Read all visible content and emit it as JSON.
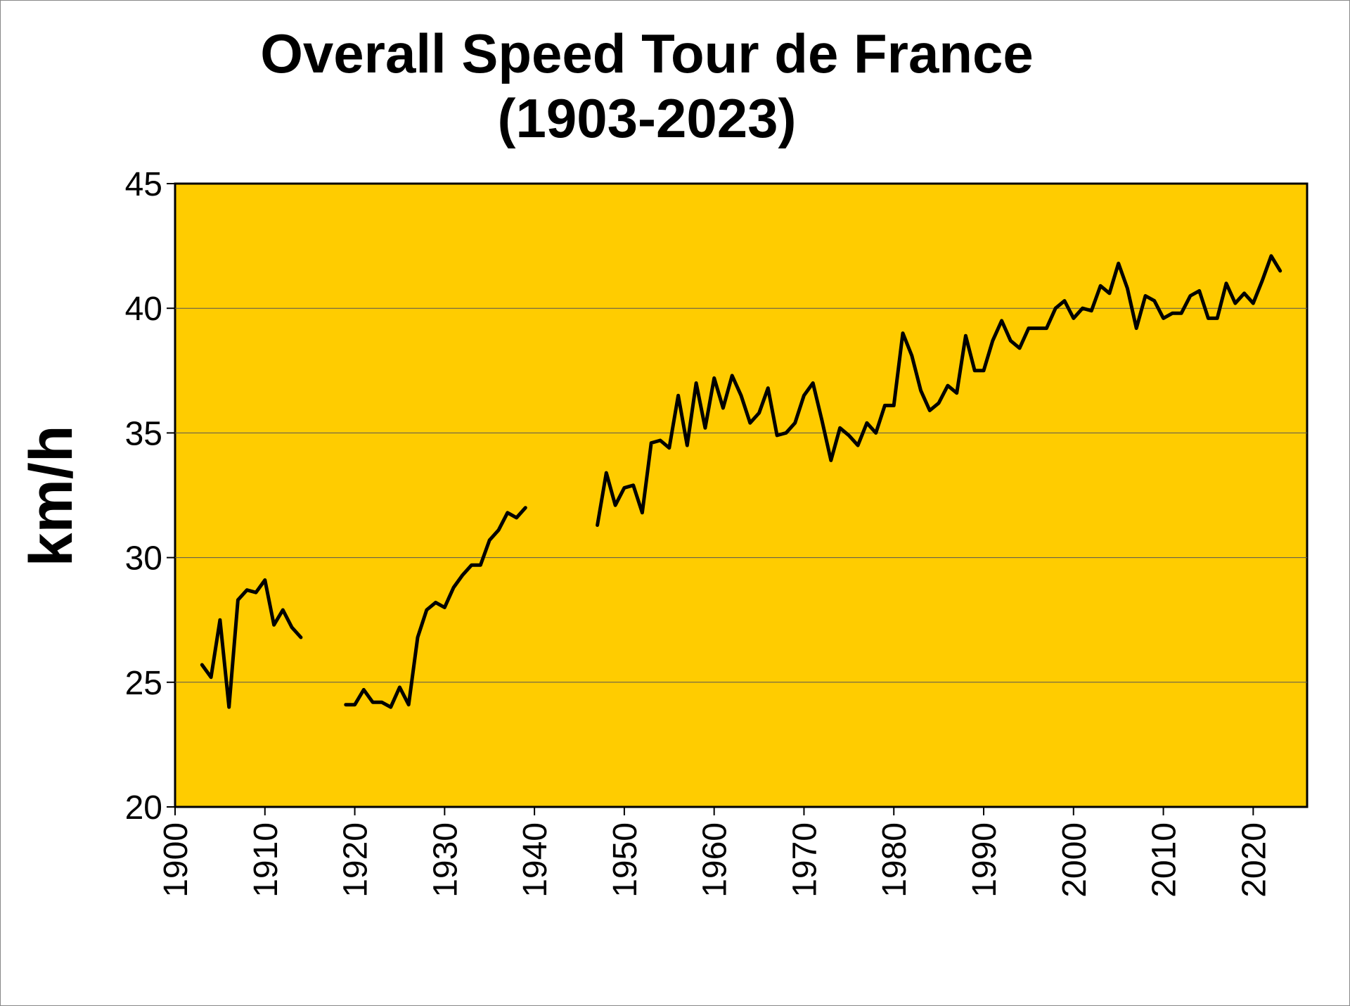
{
  "chart_data": {
    "type": "line",
    "title_line1": "Overall Speed Tour de France",
    "title_line2": "(1903-2023)",
    "ylabel": "km/h",
    "xlabel": "",
    "xlim": [
      1900,
      2026
    ],
    "ylim": [
      20,
      45
    ],
    "xticks": [
      1900,
      1910,
      1920,
      1930,
      1940,
      1950,
      1960,
      1970,
      1980,
      1990,
      2000,
      2010,
      2020
    ],
    "yticks": [
      20,
      25,
      30,
      35,
      40,
      45
    ],
    "gridlines": [
      25,
      30,
      35,
      40
    ],
    "plot_background": "#FFCC00",
    "line_color": "#000000",
    "series": [
      {
        "x": [
          1903,
          1904,
          1905,
          1906,
          1907,
          1908,
          1909,
          1910,
          1911,
          1912,
          1913,
          1914
        ],
        "y": [
          25.7,
          25.2,
          27.5,
          24.0,
          28.3,
          28.7,
          28.6,
          29.1,
          27.3,
          27.9,
          27.2,
          26.8
        ]
      },
      {
        "x": [
          1919,
          1920,
          1921,
          1922,
          1923,
          1924,
          1925,
          1926,
          1927,
          1928,
          1929,
          1930,
          1931,
          1932,
          1933,
          1934,
          1935,
          1936,
          1937,
          1938,
          1939
        ],
        "y": [
          24.1,
          24.1,
          24.7,
          24.2,
          24.2,
          24.0,
          24.8,
          24.1,
          26.8,
          27.9,
          28.2,
          28.0,
          28.8,
          29.3,
          29.7,
          29.7,
          30.7,
          31.1,
          31.8,
          31.6,
          32.0
        ]
      },
      {
        "x": [
          1947,
          1948,
          1949,
          1950,
          1951,
          1952,
          1953,
          1954,
          1955,
          1956,
          1957,
          1958,
          1959,
          1960,
          1961,
          1962,
          1963,
          1964,
          1965,
          1966,
          1967,
          1968,
          1969,
          1970,
          1971,
          1972,
          1973,
          1974,
          1975,
          1976,
          1977,
          1978,
          1979,
          1980,
          1981,
          1982,
          1983,
          1984,
          1985,
          1986,
          1987,
          1988,
          1989,
          1990,
          1991,
          1992,
          1993,
          1994,
          1995,
          1996,
          1997,
          1998,
          1999,
          2000,
          2001,
          2002,
          2003,
          2004,
          2005,
          2006,
          2007,
          2008,
          2009,
          2010,
          2011,
          2012,
          2013,
          2014,
          2015,
          2016,
          2017,
          2018,
          2019,
          2020,
          2021,
          2022,
          2023
        ],
        "y": [
          31.3,
          33.4,
          32.1,
          32.8,
          32.9,
          31.8,
          34.6,
          34.7,
          34.4,
          36.5,
          34.5,
          37.0,
          35.2,
          37.2,
          36.0,
          37.3,
          36.5,
          35.4,
          35.8,
          36.8,
          34.9,
          35.0,
          35.4,
          36.5,
          37.0,
          35.5,
          33.9,
          35.2,
          34.9,
          34.5,
          35.4,
          35.0,
          36.1,
          36.1,
          39.0,
          38.1,
          36.7,
          35.9,
          36.2,
          36.9,
          36.6,
          38.9,
          37.5,
          37.5,
          38.7,
          39.5,
          38.7,
          38.4,
          39.2,
          39.2,
          39.2,
          40.0,
          40.3,
          39.6,
          40.0,
          39.9,
          40.9,
          40.6,
          41.8,
          40.8,
          39.2,
          40.5,
          40.3,
          39.6,
          39.8,
          39.8,
          40.5,
          40.7,
          39.6,
          39.6,
          41.0,
          40.2,
          40.6,
          40.2,
          41.1,
          42.1,
          41.5
        ]
      }
    ]
  }
}
